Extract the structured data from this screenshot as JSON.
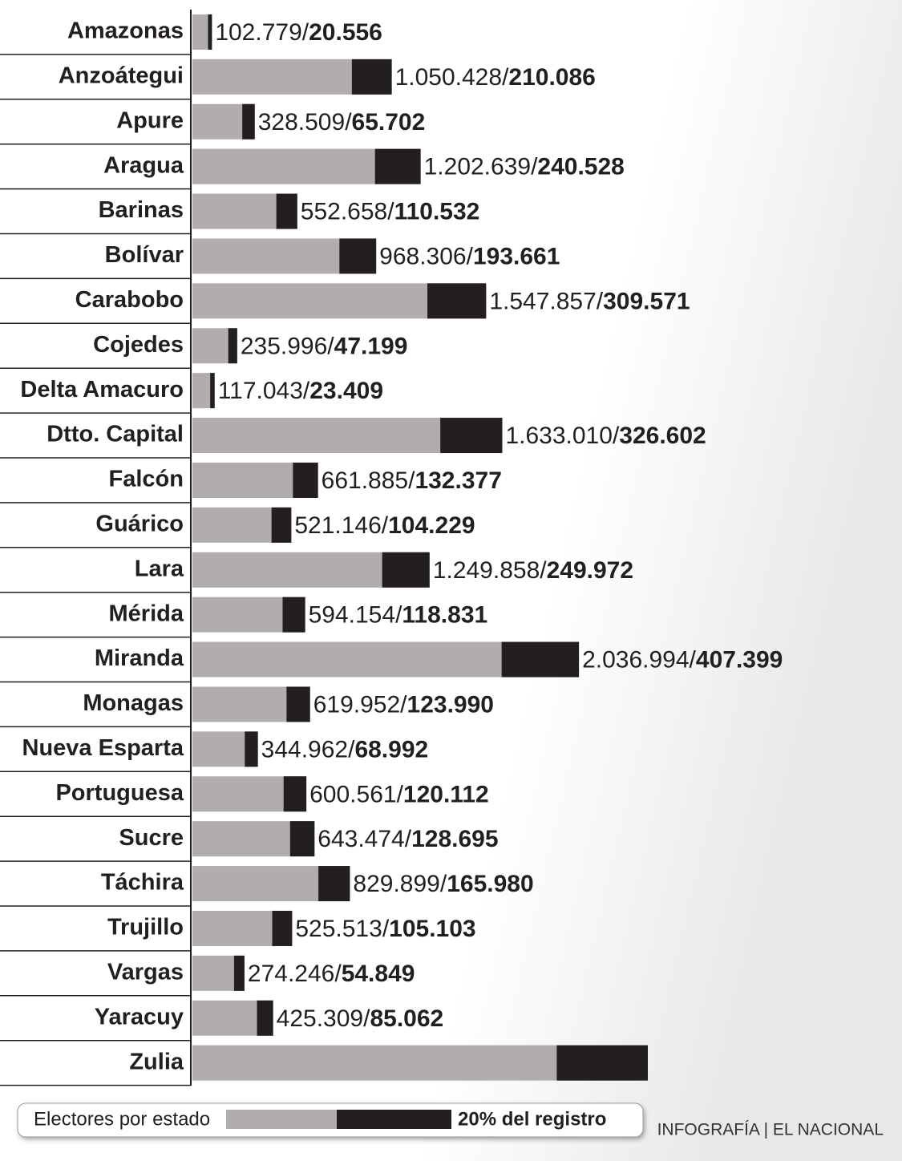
{
  "chart_data": {
    "type": "bar",
    "orientation": "horizontal",
    "categories": [
      "Amazonas",
      "Anzoátegui",
      "Apure",
      "Aragua",
      "Barinas",
      "Bolívar",
      "Carabobo",
      "Cojedes",
      "Delta Amacuro",
      "Dtto. Capital",
      "Falcón",
      "Guárico",
      "Lara",
      "Mérida",
      "Miranda",
      "Monagas",
      "Nueva Esparta",
      "Portuguesa",
      "Sucre",
      "Táchira",
      "Trujillo",
      "Vargas",
      "Yaracuy",
      "Zulia"
    ],
    "separator": "/",
    "series": [
      {
        "name": "Electores por estado",
        "color": "#b1adad",
        "values": [
          102779,
          1050428,
          328509,
          1202639,
          552658,
          968306,
          1547857,
          235996,
          117043,
          1633010,
          661885,
          521146,
          1249858,
          594154,
          2036994,
          619952,
          344962,
          600561,
          643474,
          829899,
          525513,
          274246,
          425309,
          2400000
        ],
        "value_labels": [
          "102.779",
          "1.050.428",
          "328.509",
          "1.202.639",
          "552.658",
          "968.306",
          "1.547.857",
          "235.996",
          "117.043",
          "1.633.010",
          "661.885",
          "521.146",
          "1.249.858",
          "594.154",
          "2.036.994",
          "619.952",
          "344.962",
          "600.561",
          "643.474",
          "829.899",
          "525.513",
          "274.246",
          "425.309",
          null
        ]
      },
      {
        "name": "20% del registro",
        "color": "#231f20",
        "values": [
          20556,
          210086,
          65702,
          240528,
          110532,
          193661,
          309571,
          47199,
          23409,
          326602,
          132377,
          104229,
          249972,
          118831,
          407399,
          123990,
          68992,
          120112,
          128695,
          165980,
          105103,
          54849,
          85062,
          480000
        ],
        "value_labels": [
          "20.556",
          "210.086",
          "65.702",
          "240.528",
          "110.532",
          "193.661",
          "309.571",
          "47.199",
          "23.409",
          "326.602",
          "132.377",
          "104.229",
          "249.972",
          "118.831",
          "407.399",
          "123.990",
          "68.992",
          "120.112",
          "128.695",
          "165.980",
          "105.103",
          "54.849",
          "85.062",
          null
        ]
      }
    ],
    "source": "INFOGRAFÍA | EL NACIONAL"
  }
}
